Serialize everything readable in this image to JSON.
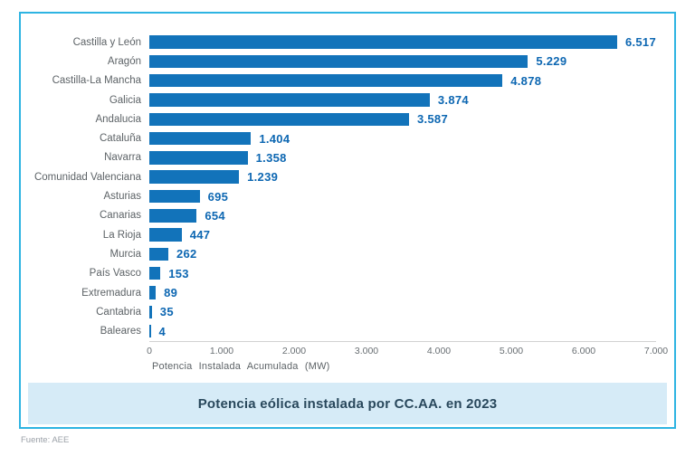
{
  "chart_data": {
    "type": "bar",
    "orientation": "horizontal",
    "title": "Potencia eólica instalada por CC.AA. en 2023",
    "xlabel": "Potencia Instalada Acumulada (MW)",
    "categories": [
      "Castilla y León",
      "Aragón",
      "Castilla-La Mancha",
      "Galicia",
      "Andalucia",
      "Cataluña",
      "Navarra",
      "Comunidad Valenciana",
      "Asturias",
      "Canarias",
      "La Rioja",
      "Murcia",
      "País Vasco",
      "Extremadura",
      "Cantabria",
      "Baleares"
    ],
    "values": [
      6517,
      5229,
      4878,
      3874,
      3587,
      1404,
      1358,
      1239,
      695,
      654,
      447,
      262,
      153,
      89,
      35,
      4
    ],
    "value_labels": [
      "6.517",
      "5.229",
      "4.878",
      "3.874",
      "3.587",
      "1.404",
      "1.358",
      "1.239",
      "695",
      "654",
      "447",
      "262",
      "153",
      "89",
      "35",
      "4"
    ],
    "xlim": [
      0,
      7000
    ],
    "x_tick_values": [
      0,
      1000,
      2000,
      3000,
      4000,
      5000,
      6000,
      7000
    ],
    "x_tick_labels": [
      "0",
      "1.000",
      "2.000",
      "3.000",
      "4.000",
      "5.000",
      "6.000",
      "7.000"
    ],
    "grid": false,
    "legend": null,
    "bar_color": "#1273ba",
    "value_label_color": "#0d67b2",
    "frame_border_color": "#2eb4e2",
    "title_band_color": "#d6ebf7",
    "title_text_color": "#29485c"
  },
  "footer": {
    "source": "Fuente: AEE"
  }
}
